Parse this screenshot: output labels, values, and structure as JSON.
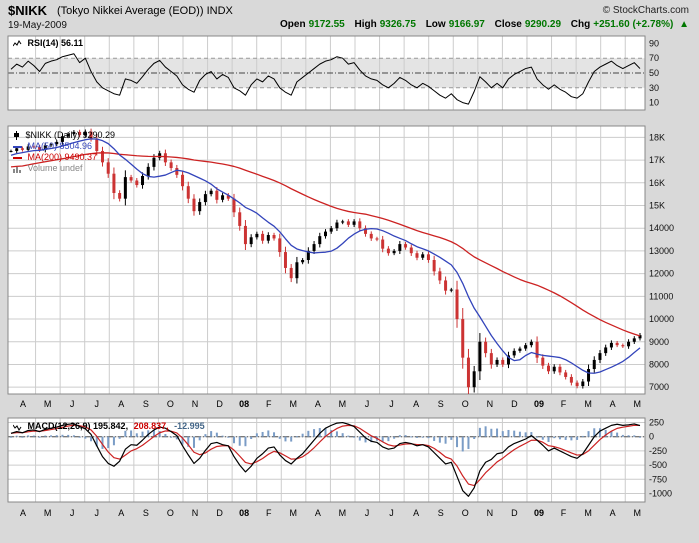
{
  "header": {
    "symbol": "$NIKK",
    "title": "(Tokyo Nikkei Average (EOD)) INDX",
    "date": "19-May-2009",
    "copyright": "© StockCharts.com",
    "quote": [
      {
        "label": "Open",
        "value": "9172.55"
      },
      {
        "label": "High",
        "value": "9326.75"
      },
      {
        "label": "Low",
        "value": "9166.97"
      },
      {
        "label": "Close",
        "value": "9290.29"
      },
      {
        "label": "Chg",
        "value": "+251.60 (+2.78%)"
      }
    ],
    "direction_arrow": "▲",
    "up_color": "#007700"
  },
  "rsi_panel": {
    "label": "RSI(14) 56.11"
  },
  "main_panel": {
    "legend": [
      {
        "label": "$NIKK (Daily) 9290.29",
        "color": "#000000",
        "marker": "candle"
      },
      {
        "label": "MA(50) 8504.96",
        "color": "#3344bb",
        "marker": "line"
      },
      {
        "label": "MA(200) 9490.37",
        "color": "#cc0000",
        "marker": "line"
      },
      {
        "label": "Volume undef",
        "color": "#888888",
        "marker": "bars"
      }
    ]
  },
  "macd_panel": {
    "parts": [
      {
        "text": "MACD(12,26,9) 195.842,",
        "color": "#000000"
      },
      {
        "text": "208.837,",
        "color": "#cc0000"
      },
      {
        "text": "-12.995",
        "color": "#446688"
      }
    ]
  },
  "x_axis": {
    "months": [
      "A",
      "M",
      "J",
      "J",
      "A",
      "S",
      "O",
      "N",
      "D",
      "08",
      "F",
      "M",
      "A",
      "M",
      "J",
      "J",
      "A",
      "S",
      "O",
      "N",
      "D",
      "09",
      "F",
      "M",
      "A",
      "M"
    ],
    "span_months": 25.6
  },
  "chart_data": [
    {
      "id": "rsi",
      "type": "line",
      "title": "RSI(14)",
      "last_value": 56.11,
      "ylim": [
        0,
        100
      ],
      "band": [
        30,
        70
      ],
      "midline": 50,
      "legend_position": "top-left",
      "yticks": [
        {
          "label": "90",
          "v": 90
        },
        {
          "label": "70",
          "v": 70
        },
        {
          "label": "50",
          "v": 50
        },
        {
          "label": "30",
          "v": 30
        },
        {
          "label": "10",
          "v": 10
        }
      ],
      "values": [
        55,
        62,
        58,
        66,
        60,
        52,
        63,
        66,
        68,
        72,
        74,
        76,
        64,
        70,
        52,
        38,
        30,
        26,
        22,
        20,
        42,
        40,
        36,
        45,
        55,
        63,
        67,
        58,
        52,
        46,
        34,
        28,
        24,
        40,
        48,
        52,
        42,
        48,
        44,
        30,
        26,
        20,
        34,
        42,
        38,
        46,
        42,
        30,
        24,
        20,
        38,
        44,
        50,
        56,
        62,
        66,
        68,
        72,
        70,
        62,
        64,
        54,
        46,
        42,
        40,
        34,
        30,
        36,
        44,
        40,
        34,
        30,
        36,
        32,
        26,
        20,
        16,
        22,
        14,
        10,
        8,
        25,
        45,
        38,
        30,
        36,
        30,
        42,
        48,
        52,
        56,
        58,
        42,
        34,
        28,
        34,
        28,
        24,
        18,
        16,
        22,
        38,
        52,
        58,
        62,
        66,
        60,
        56,
        60,
        64,
        56
      ]
    },
    {
      "id": "price",
      "type": "line",
      "style": "candlestick",
      "title": "$NIKK (Daily)",
      "last_close": 9290.29,
      "ma50_last": 8504.96,
      "ma200_last": 9490.37,
      "ylim": [
        6700,
        18500
      ],
      "up_color": "#000000",
      "down_color": "#cc3333",
      "ma50_color": "#3344bb",
      "ma200_color": "#cc2222",
      "ma50_period_weeks": 10,
      "ma200_period_weeks": 43,
      "yticks": [
        {
          "label": "18K",
          "v": 18000
        },
        {
          "label": "17K",
          "v": 17000
        },
        {
          "label": "16K",
          "v": 16000
        },
        {
          "label": "15K",
          "v": 15000
        },
        {
          "label": "14000",
          "v": 14000
        },
        {
          "label": "13000",
          "v": 13000
        },
        {
          "label": "12000",
          "v": 12000
        },
        {
          "label": "11000",
          "v": 11000
        },
        {
          "label": "10000",
          "v": 10000
        },
        {
          "label": "9000",
          "v": 9000
        },
        {
          "label": "8000",
          "v": 8000
        },
        {
          "label": "7000",
          "v": 7000
        }
      ],
      "closes": [
        17400,
        17520,
        17450,
        17600,
        17580,
        17450,
        17650,
        17700,
        17800,
        18050,
        18150,
        18240,
        18100,
        18250,
        17950,
        17400,
        16900,
        16400,
        15550,
        15300,
        16250,
        16100,
        15900,
        16300,
        16700,
        17100,
        17300,
        16900,
        16650,
        16350,
        15850,
        15300,
        14750,
        15150,
        15500,
        15650,
        15250,
        15450,
        15300,
        14700,
        14100,
        13300,
        13600,
        13750,
        13450,
        13700,
        13550,
        12950,
        12250,
        11800,
        12500,
        12600,
        13000,
        13300,
        13650,
        13850,
        14000,
        14250,
        14300,
        14150,
        14300,
        14000,
        13750,
        13550,
        13500,
        13100,
        12900,
        13000,
        13300,
        13150,
        12900,
        12700,
        12850,
        12600,
        12100,
        11700,
        11250,
        11300,
        10000,
        8300,
        7000,
        7700,
        9000,
        8500,
        8000,
        8200,
        8000,
        8400,
        8600,
        8700,
        8850,
        9000,
        8300,
        7950,
        7700,
        7900,
        7650,
        7450,
        7200,
        7050,
        7250,
        7800,
        8200,
        8500,
        8750,
        8950,
        8850,
        8800,
        9000,
        9150,
        9290
      ],
      "ma_seed": [
        15500,
        15400,
        15600,
        15700,
        15800,
        15900,
        16100,
        16300,
        16100,
        16000,
        16200,
        16400,
        16300,
        16500,
        16600,
        16700,
        16800,
        17000,
        17100,
        16900,
        17000,
        17200,
        17300,
        17150,
        17250,
        17350,
        17200,
        17100,
        16900,
        16700,
        16600,
        16800,
        17000,
        17100,
        17200,
        17300,
        17250,
        17300,
        17350,
        17400
      ]
    },
    {
      "id": "macd",
      "type": "bar",
      "title": "MACD(12,26,9)",
      "macd_last": 195.842,
      "signal_last": 208.837,
      "hist_last": -12.995,
      "ylim": [
        -1150,
        330
      ],
      "signal_alpha": 0.4,
      "hist_color": "#7a9cc6",
      "macd_color": "#000000",
      "signal_color": "#cc2222",
      "yticks": [
        {
          "label": "250",
          "v": 250
        },
        {
          "label": "0",
          "v": 0
        },
        {
          "label": "-250",
          "v": -250
        },
        {
          "label": "-500",
          "v": -500
        },
        {
          "label": "-750",
          "v": -750
        },
        {
          "label": "-1000",
          "v": -1000
        }
      ],
      "macd": [
        60,
        90,
        70,
        110,
        120,
        90,
        130,
        150,
        170,
        200,
        220,
        230,
        180,
        140,
        40,
        -160,
        -350,
        -470,
        -520,
        -430,
        -220,
        -140,
        -150,
        -60,
        40,
        120,
        170,
        150,
        90,
        20,
        -160,
        -320,
        -470,
        -380,
        -240,
        -120,
        -100,
        -140,
        -160,
        -350,
        -500,
        -620,
        -520,
        -380,
        -300,
        -200,
        -180,
        -320,
        -420,
        -480,
        -380,
        -300,
        -180,
        -60,
        60,
        150,
        200,
        240,
        250,
        220,
        180,
        80,
        -20,
        -80,
        -100,
        -180,
        -220,
        -200,
        -120,
        -100,
        -120,
        -160,
        -140,
        -180,
        -280,
        -380,
        -480,
        -450,
        -700,
        -950,
        -1050,
        -900,
        -600,
        -450,
        -400,
        -300,
        -280,
        -180,
        -120,
        -80,
        -40,
        20,
        -60,
        -150,
        -250,
        -200,
        -250,
        -300,
        -350,
        -380,
        -300,
        -150,
        0,
        100,
        150,
        200,
        220,
        200,
        210,
        225,
        196
      ]
    }
  ]
}
